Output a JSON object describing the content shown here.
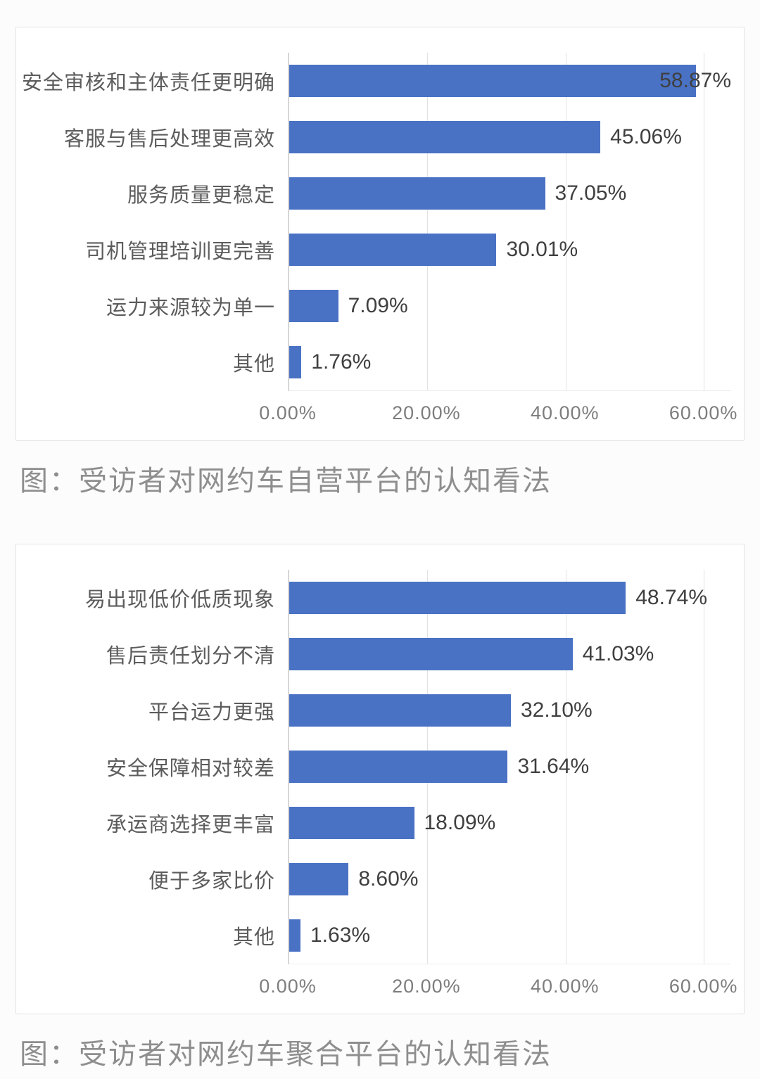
{
  "page": {
    "background": "#fcfcfc",
    "panel_background": "#ffffff",
    "panel_border": "#e4e4e4"
  },
  "chart_data": [
    {
      "type": "bar",
      "orientation": "horizontal",
      "caption": "图：受访者对网约车自营平台的认知看法",
      "categories": [
        "安全审核和主体责任更明确",
        "客服与售后处理更高效",
        "服务质量更稳定",
        "司机管理培训更完善",
        "运力来源较为单一",
        "其他"
      ],
      "values": [
        58.87,
        45.06,
        37.05,
        30.01,
        7.09,
        1.76
      ],
      "data_labels": [
        "58.87%",
        "45.06%",
        "37.05%",
        "30.01%",
        "7.09%",
        "1.76%"
      ],
      "x_ticks": [
        {
          "label": "0.00%",
          "value": 0
        },
        {
          "label": "20.00%",
          "value": 20
        },
        {
          "label": "40.00%",
          "value": 40
        },
        {
          "label": "60.00%",
          "value": 60
        }
      ],
      "xlim": [
        0,
        64
      ],
      "bar_color": "#4a72c4",
      "grid": true,
      "legend": false
    },
    {
      "type": "bar",
      "orientation": "horizontal",
      "caption": "图：受访者对网约车聚合平台的认知看法",
      "categories": [
        "易出现低价低质现象",
        "售后责任划分不清",
        "平台运力更强",
        "安全保障相对较差",
        "承运商选择更丰富",
        "便于多家比价",
        "其他"
      ],
      "values": [
        48.74,
        41.03,
        32.1,
        31.64,
        18.09,
        8.6,
        1.63
      ],
      "data_labels": [
        "48.74%",
        "41.03%",
        "32.10%",
        "31.64%",
        "18.09%",
        "8.60%",
        "1.63%"
      ],
      "x_ticks": [
        {
          "label": "0.00%",
          "value": 0
        },
        {
          "label": "20.00%",
          "value": 20
        },
        {
          "label": "40.00%",
          "value": 40
        },
        {
          "label": "60.00%",
          "value": 60
        }
      ],
      "xlim": [
        0,
        64
      ],
      "bar_color": "#4a72c4",
      "grid": true,
      "legend": false
    }
  ]
}
